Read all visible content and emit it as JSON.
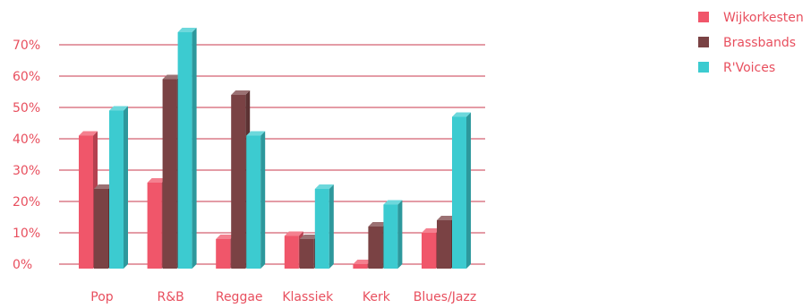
{
  "chart_data": {
    "type": "bar",
    "categories": [
      "Pop",
      "R&B",
      "Reggae",
      "Klassiek",
      "Kerk",
      "Blues/Jazz"
    ],
    "series": [
      {
        "name": "Wijkorkesten",
        "color": "#f0566a",
        "values": [
          41,
          26,
          8,
          9,
          0,
          10
        ]
      },
      {
        "name": "Brassbands",
        "color": "#7a4244",
        "values": [
          24,
          59,
          54,
          8,
          12,
          14
        ]
      },
      {
        "name": "R'Voices",
        "color": "#3ccbd0",
        "values": [
          49,
          74,
          41,
          24,
          19,
          47
        ]
      }
    ],
    "y_ticks": [
      "0%",
      "10%",
      "20%",
      "30%",
      "40%",
      "50%",
      "60%",
      "70%"
    ],
    "ylim": [
      0,
      75
    ],
    "grid": true,
    "legend_position": "top-right"
  }
}
